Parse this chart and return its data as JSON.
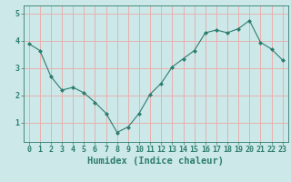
{
  "x": [
    0,
    1,
    2,
    3,
    4,
    5,
    6,
    7,
    8,
    9,
    10,
    11,
    12,
    13,
    14,
    15,
    16,
    17,
    18,
    19,
    20,
    21,
    22,
    23
  ],
  "y": [
    3.9,
    3.65,
    2.7,
    2.2,
    2.3,
    2.1,
    1.75,
    1.35,
    0.65,
    0.85,
    1.35,
    2.05,
    2.45,
    3.05,
    3.35,
    3.65,
    4.3,
    4.4,
    4.3,
    4.45,
    4.75,
    3.95,
    3.7,
    3.3
  ],
  "line_color": "#2d7d6e",
  "marker": "D",
  "marker_size": 2,
  "bg_color": "#cce8e8",
  "grid_color": "#e8b0b0",
  "xlabel": "Humidex (Indice chaleur)",
  "xlabel_color": "#2d7d6e",
  "xlabel_fontsize": 7.5,
  "tick_color": "#2d7d6e",
  "tick_fontsize": 6,
  "yticks": [
    1,
    2,
    3,
    4,
    5
  ],
  "ylim": [
    0.3,
    5.3
  ],
  "xlim": [
    -0.5,
    23.5
  ]
}
